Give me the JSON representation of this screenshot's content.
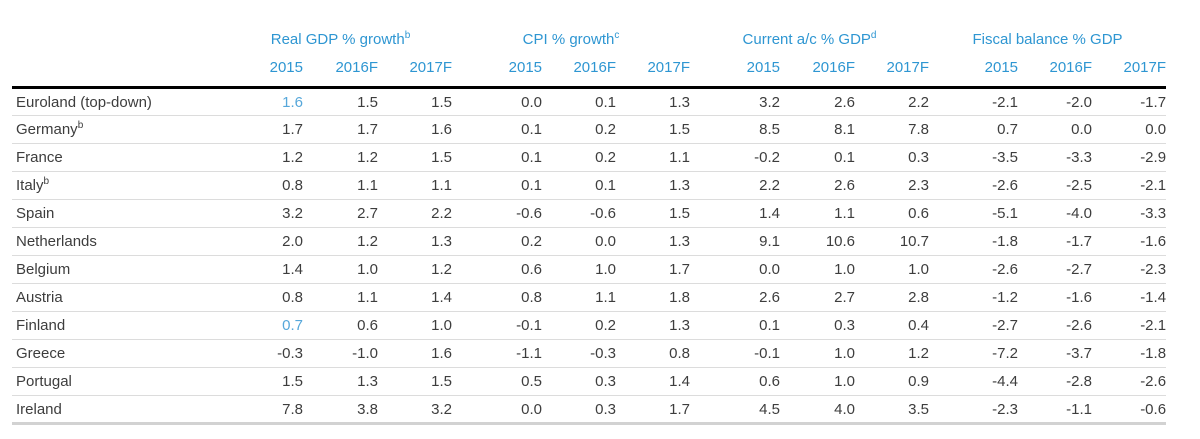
{
  "colors": {
    "header_blue": "#2e96d2",
    "highlight_blue": "#56a7da",
    "text": "#3d3d3d",
    "header_rule": "#000000",
    "row_rule": "#dcdcdc",
    "bottom_rule": "#d2d2d2"
  },
  "table": {
    "groups": [
      {
        "label": "Real GDP % growth",
        "sup": "b"
      },
      {
        "label": "CPI % growth",
        "sup": "c"
      },
      {
        "label": "Current a/c % GDP",
        "sup": "d"
      },
      {
        "label": "Fiscal balance % GDP",
        "sup": ""
      }
    ],
    "years": [
      "2015",
      "2016F",
      "2017F"
    ],
    "row_sups": {
      "Germany": "b",
      "Italy": "b"
    },
    "highlights": [
      {
        "row": 0,
        "col": 0
      },
      {
        "row": 8,
        "col": 0
      }
    ]
  },
  "chart_data": {
    "type": "table",
    "column_groups": [
      "Real GDP % growth",
      "CPI % growth",
      "Current a/c % GDP",
      "Fiscal balance % GDP"
    ],
    "sub_columns": [
      "2015",
      "2016F",
      "2017F"
    ],
    "rows": [
      {
        "label": "Euroland (top-down)",
        "values": [
          1.6,
          1.5,
          1.5,
          0.0,
          0.1,
          1.3,
          3.2,
          2.6,
          2.2,
          -2.1,
          -2.0,
          -1.7
        ]
      },
      {
        "label": "Germany",
        "values": [
          1.7,
          1.7,
          1.6,
          0.1,
          0.2,
          1.5,
          8.5,
          8.1,
          7.8,
          0.7,
          0.0,
          0.0
        ]
      },
      {
        "label": "France",
        "values": [
          1.2,
          1.2,
          1.5,
          0.1,
          0.2,
          1.1,
          -0.2,
          0.1,
          0.3,
          -3.5,
          -3.3,
          -2.9
        ]
      },
      {
        "label": "Italy",
        "values": [
          0.8,
          1.1,
          1.1,
          0.1,
          0.1,
          1.3,
          2.2,
          2.6,
          2.3,
          -2.6,
          -2.5,
          -2.1
        ]
      },
      {
        "label": "Spain",
        "values": [
          3.2,
          2.7,
          2.2,
          -0.6,
          -0.6,
          1.5,
          1.4,
          1.1,
          0.6,
          -5.1,
          -4.0,
          -3.3
        ]
      },
      {
        "label": "Netherlands",
        "values": [
          2.0,
          1.2,
          1.3,
          0.2,
          0.0,
          1.3,
          9.1,
          10.6,
          10.7,
          -1.8,
          -1.7,
          -1.6
        ]
      },
      {
        "label": "Belgium",
        "values": [
          1.4,
          1.0,
          1.2,
          0.6,
          1.0,
          1.7,
          0.0,
          1.0,
          1.0,
          -2.6,
          -2.7,
          -2.3
        ]
      },
      {
        "label": "Austria",
        "values": [
          0.8,
          1.1,
          1.4,
          0.8,
          1.1,
          1.8,
          2.6,
          2.7,
          2.8,
          -1.2,
          -1.6,
          -1.4
        ]
      },
      {
        "label": "Finland",
        "values": [
          0.7,
          0.6,
          1.0,
          -0.1,
          0.2,
          1.3,
          0.1,
          0.3,
          0.4,
          -2.7,
          -2.6,
          -2.1
        ]
      },
      {
        "label": "Greece",
        "values": [
          -0.3,
          -1.0,
          1.6,
          -1.1,
          -0.3,
          0.8,
          -0.1,
          1.0,
          1.2,
          -7.2,
          -3.7,
          -1.8
        ]
      },
      {
        "label": "Portugal",
        "values": [
          1.5,
          1.3,
          1.5,
          0.5,
          0.3,
          1.4,
          0.6,
          1.0,
          0.9,
          -4.4,
          -2.8,
          -2.6
        ]
      },
      {
        "label": "Ireland",
        "values": [
          7.8,
          3.8,
          3.2,
          0.0,
          0.3,
          1.7,
          4.5,
          4.0,
          3.5,
          -2.3,
          -1.1,
          -0.6
        ]
      }
    ]
  }
}
